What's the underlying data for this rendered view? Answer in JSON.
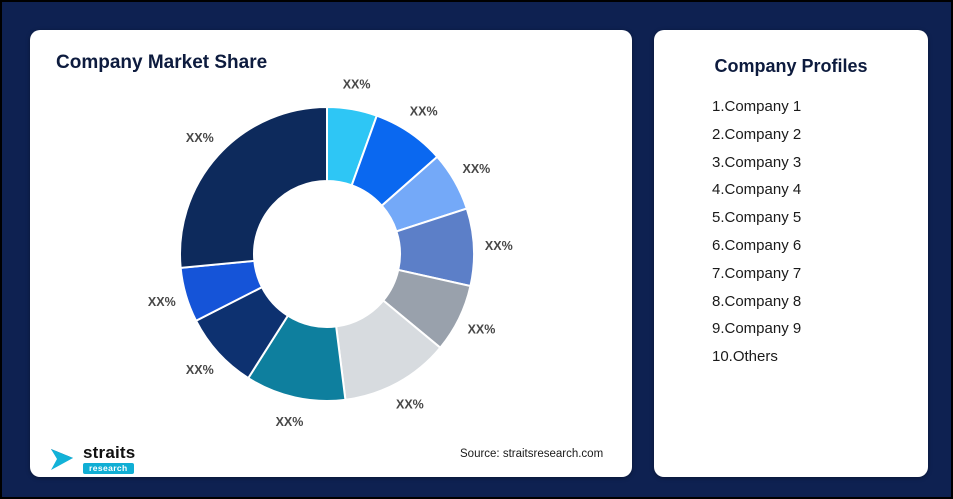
{
  "page": {
    "background": "#0e2151"
  },
  "left_card": {
    "title": "Company Market Share",
    "source": "Source: straitsresearch.com",
    "logo": {
      "name": "straits",
      "sub": "research",
      "accent": "#10aed4"
    }
  },
  "right_card": {
    "title": "Company Profiles",
    "items": [
      "1.Company 1",
      "2.Company 2",
      "3.Company 3",
      "4.Company 4",
      "5.Company 5",
      "6.Company 6",
      "7.Company 7",
      "8.Company 8",
      "9.Company 9",
      "10.Others"
    ]
  },
  "chart_data": {
    "type": "pie",
    "subtype": "donut",
    "title": "Company Market Share",
    "direction": "clockwise",
    "start_angle_deg": 0,
    "inner_radius_ratio": 0.5,
    "legend_position": "none",
    "slices": [
      {
        "label": "XX%",
        "estimated_percent": 5.5,
        "color": "#2EC6F5"
      },
      {
        "label": "XX%",
        "estimated_percent": 8.0,
        "color": "#0A68F0"
      },
      {
        "label": "XX%",
        "estimated_percent": 6.5,
        "color": "#74A9F8"
      },
      {
        "label": "XX%",
        "estimated_percent": 8.5,
        "color": "#5C7FC8"
      },
      {
        "label": "XX%",
        "estimated_percent": 7.5,
        "color": "#99A1AC"
      },
      {
        "label": "XX%",
        "estimated_percent": 12.0,
        "color": "#D7DBDF"
      },
      {
        "label": "XX%",
        "estimated_percent": 11.0,
        "color": "#0E7F9E"
      },
      {
        "label": "XX%",
        "estimated_percent": 8.5,
        "color": "#0D3170"
      },
      {
        "label": "XX%",
        "estimated_percent": 6.0,
        "color": "#1554D8"
      },
      {
        "label": "XX%",
        "estimated_percent": 26.5,
        "color": "#0D2A5C"
      }
    ]
  }
}
